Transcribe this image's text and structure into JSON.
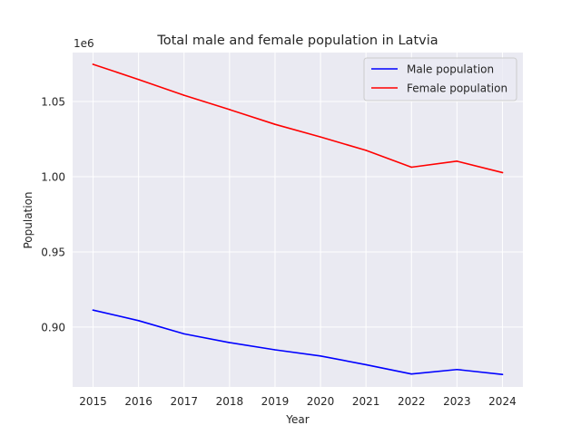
{
  "chart_data": {
    "type": "line",
    "title": "Total male and female population in Latvia",
    "xlabel": "Year",
    "ylabel": "Population",
    "y_offset_label": "1e6",
    "x": [
      2015,
      2016,
      2017,
      2018,
      2019,
      2020,
      2021,
      2022,
      2023,
      2024
    ],
    "x_tick_labels": [
      "2015",
      "2016",
      "2017",
      "2018",
      "2019",
      "2020",
      "2021",
      "2022",
      "2023",
      "2024"
    ],
    "y_ticks": [
      0.9,
      0.95,
      1.0,
      1.05
    ],
    "y_tick_labels": [
      "0.90",
      "0.95",
      "1.00",
      "1.05"
    ],
    "xlim": [
      2014.55,
      2024.45
    ],
    "ylim": [
      0.8602,
      1.0825
    ],
    "grid": true,
    "legend_position": "top-right",
    "series": [
      {
        "name": "Male population",
        "color": "#0000ff",
        "values": [
          0.9113,
          0.9043,
          0.8955,
          0.8897,
          0.8849,
          0.8808,
          0.875,
          0.8688,
          0.8718,
          0.8685
        ]
      },
      {
        "name": "Female population",
        "color": "#ff0000",
        "values": [
          1.0747,
          1.0646,
          1.0541,
          1.0446,
          1.0348,
          1.0264,
          1.0175,
          1.0063,
          1.0103,
          1.0027
        ]
      }
    ]
  },
  "style": {
    "axes_background": "#eaeaf2",
    "grid_color": "#ffffff",
    "text_color": "#262626"
  }
}
